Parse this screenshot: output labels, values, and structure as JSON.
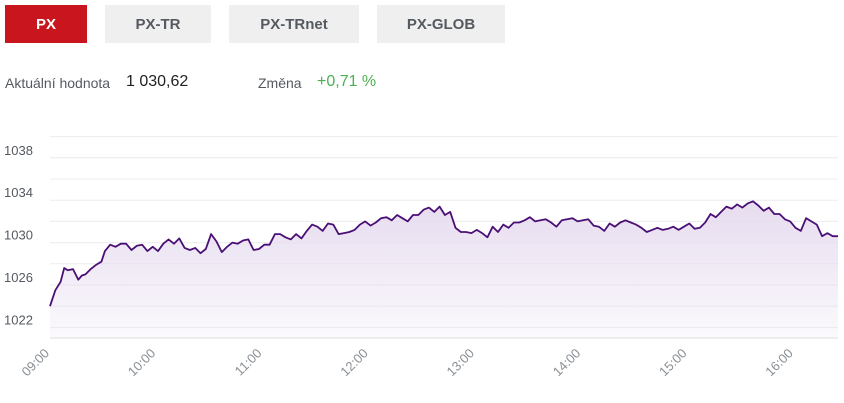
{
  "tabs": [
    {
      "label": "PX",
      "active": true
    },
    {
      "label": "PX-TR",
      "active": false
    },
    {
      "label": "PX-TRnet",
      "active": false
    },
    {
      "label": "PX-GLOB",
      "active": false
    }
  ],
  "info": {
    "value_label": "Aktuální hodnota",
    "value": "1 030,62",
    "change_label": "Změna",
    "change": "+0,71 %"
  },
  "colors": {
    "accent": "#c9151e",
    "line": "#4a0f75",
    "fill": "#e6dcef",
    "positive": "#4caf50"
  },
  "chart_data": {
    "type": "area",
    "x_ticks": [
      "09:00",
      "10:00",
      "11:00",
      "12:00",
      "13:00",
      "14:00",
      "15:00",
      "16:00"
    ],
    "y_ticks": [
      1022,
      1026,
      1030,
      1034,
      1038
    ],
    "ylim": [
      1021,
      1041
    ],
    "xlim": [
      "09:00",
      "16:25"
    ],
    "grid": true,
    "points": [
      [
        "09:00",
        1024.0
      ],
      [
        "09:03",
        1025.5
      ],
      [
        "09:06",
        1026.3
      ],
      [
        "09:08",
        1027.6
      ],
      [
        "09:10",
        1027.4
      ],
      [
        "09:13",
        1027.5
      ],
      [
        "09:16",
        1026.5
      ],
      [
        "09:18",
        1026.9
      ],
      [
        "09:20",
        1027.0
      ],
      [
        "09:23",
        1027.5
      ],
      [
        "09:26",
        1027.9
      ],
      [
        "09:29",
        1028.2
      ],
      [
        "09:31",
        1029.2
      ],
      [
        "09:34",
        1029.8
      ],
      [
        "09:37",
        1029.6
      ],
      [
        "09:40",
        1029.9
      ],
      [
        "09:43",
        1029.9
      ],
      [
        "09:46",
        1029.3
      ],
      [
        "09:49",
        1029.7
      ],
      [
        "09:52",
        1029.8
      ],
      [
        "09:55",
        1029.2
      ],
      [
        "09:58",
        1029.6
      ],
      [
        "10:01",
        1029.2
      ],
      [
        "10:04",
        1029.9
      ],
      [
        "10:07",
        1030.3
      ],
      [
        "10:10",
        1029.9
      ],
      [
        "10:13",
        1030.4
      ],
      [
        "10:16",
        1029.5
      ],
      [
        "10:19",
        1029.3
      ],
      [
        "10:22",
        1029.5
      ],
      [
        "10:25",
        1029.0
      ],
      [
        "10:28",
        1029.4
      ],
      [
        "10:31",
        1030.8
      ],
      [
        "10:34",
        1030.1
      ],
      [
        "10:37",
        1029.1
      ],
      [
        "10:40",
        1029.6
      ],
      [
        "10:43",
        1030.0
      ],
      [
        "10:46",
        1029.9
      ],
      [
        "10:49",
        1030.2
      ],
      [
        "10:52",
        1030.3
      ],
      [
        "10:55",
        1029.3
      ],
      [
        "10:58",
        1029.4
      ],
      [
        "11:01",
        1029.8
      ],
      [
        "11:04",
        1029.8
      ],
      [
        "11:07",
        1030.8
      ],
      [
        "11:10",
        1030.8
      ],
      [
        "11:13",
        1030.5
      ],
      [
        "11:16",
        1030.3
      ],
      [
        "11:19",
        1030.8
      ],
      [
        "11:22",
        1030.4
      ],
      [
        "11:25",
        1031.1
      ],
      [
        "11:28",
        1031.7
      ],
      [
        "11:31",
        1031.5
      ],
      [
        "11:34",
        1031.1
      ],
      [
        "11:37",
        1031.8
      ],
      [
        "11:40",
        1031.7
      ],
      [
        "11:43",
        1030.8
      ],
      [
        "11:46",
        1030.9
      ],
      [
        "11:49",
        1031.0
      ],
      [
        "11:52",
        1031.2
      ],
      [
        "11:55",
        1031.7
      ],
      [
        "11:58",
        1032.0
      ],
      [
        "12:01",
        1031.6
      ],
      [
        "12:04",
        1031.9
      ],
      [
        "12:07",
        1032.3
      ],
      [
        "12:10",
        1032.4
      ],
      [
        "12:13",
        1032.1
      ],
      [
        "12:16",
        1032.6
      ],
      [
        "12:19",
        1032.3
      ],
      [
        "12:22",
        1032.0
      ],
      [
        "12:25",
        1032.6
      ],
      [
        "12:28",
        1032.6
      ],
      [
        "12:31",
        1033.1
      ],
      [
        "12:34",
        1033.3
      ],
      [
        "12:37",
        1032.9
      ],
      [
        "12:40",
        1033.4
      ],
      [
        "12:43",
        1032.6
      ],
      [
        "12:46",
        1032.9
      ],
      [
        "12:49",
        1031.4
      ],
      [
        "12:52",
        1031.0
      ],
      [
        "12:55",
        1031.0
      ],
      [
        "12:58",
        1030.9
      ],
      [
        "13:01",
        1031.2
      ],
      [
        "13:04",
        1030.9
      ],
      [
        "13:07",
        1030.5
      ],
      [
        "13:10",
        1031.5
      ],
      [
        "13:13",
        1031.0
      ],
      [
        "13:16",
        1031.7
      ],
      [
        "13:19",
        1031.4
      ],
      [
        "13:22",
        1031.9
      ],
      [
        "13:25",
        1031.9
      ],
      [
        "13:28",
        1032.1
      ],
      [
        "13:31",
        1032.4
      ],
      [
        "13:34",
        1032.0
      ],
      [
        "13:37",
        1032.1
      ],
      [
        "13:40",
        1032.2
      ],
      [
        "13:43",
        1031.9
      ],
      [
        "13:46",
        1031.5
      ],
      [
        "13:49",
        1032.1
      ],
      [
        "13:52",
        1032.2
      ],
      [
        "13:55",
        1032.3
      ],
      [
        "13:58",
        1032.0
      ],
      [
        "14:01",
        1032.1
      ],
      [
        "14:04",
        1032.2
      ],
      [
        "14:07",
        1031.6
      ],
      [
        "14:10",
        1031.5
      ],
      [
        "14:13",
        1031.1
      ],
      [
        "14:16",
        1031.8
      ],
      [
        "14:19",
        1031.5
      ],
      [
        "14:22",
        1031.9
      ],
      [
        "14:25",
        1032.1
      ],
      [
        "14:28",
        1031.9
      ],
      [
        "14:31",
        1031.7
      ],
      [
        "14:34",
        1031.4
      ],
      [
        "14:37",
        1031.0
      ],
      [
        "14:40",
        1031.2
      ],
      [
        "14:43",
        1031.4
      ],
      [
        "14:46",
        1031.2
      ],
      [
        "14:49",
        1031.3
      ],
      [
        "14:52",
        1031.5
      ],
      [
        "14:55",
        1031.2
      ],
      [
        "14:58",
        1031.5
      ],
      [
        "15:01",
        1031.8
      ],
      [
        "15:04",
        1031.3
      ],
      [
        "15:07",
        1031.4
      ],
      [
        "15:10",
        1031.9
      ],
      [
        "15:13",
        1032.7
      ],
      [
        "15:16",
        1032.4
      ],
      [
        "15:19",
        1032.9
      ],
      [
        "15:22",
        1033.4
      ],
      [
        "15:25",
        1033.2
      ],
      [
        "15:28",
        1033.6
      ],
      [
        "15:31",
        1033.3
      ],
      [
        "15:34",
        1033.7
      ],
      [
        "15:37",
        1033.9
      ],
      [
        "15:40",
        1033.5
      ],
      [
        "15:43",
        1033.0
      ],
      [
        "15:46",
        1033.3
      ],
      [
        "15:49",
        1032.7
      ],
      [
        "15:52",
        1032.7
      ],
      [
        "15:55",
        1032.2
      ],
      [
        "15:58",
        1032.0
      ],
      [
        "16:01",
        1031.4
      ],
      [
        "16:04",
        1031.1
      ],
      [
        "16:07",
        1032.3
      ],
      [
        "16:10",
        1032.0
      ],
      [
        "16:13",
        1031.7
      ],
      [
        "16:16",
        1030.6
      ],
      [
        "16:19",
        1030.9
      ],
      [
        "16:22",
        1030.6
      ],
      [
        "16:25",
        1030.6
      ]
    ]
  }
}
